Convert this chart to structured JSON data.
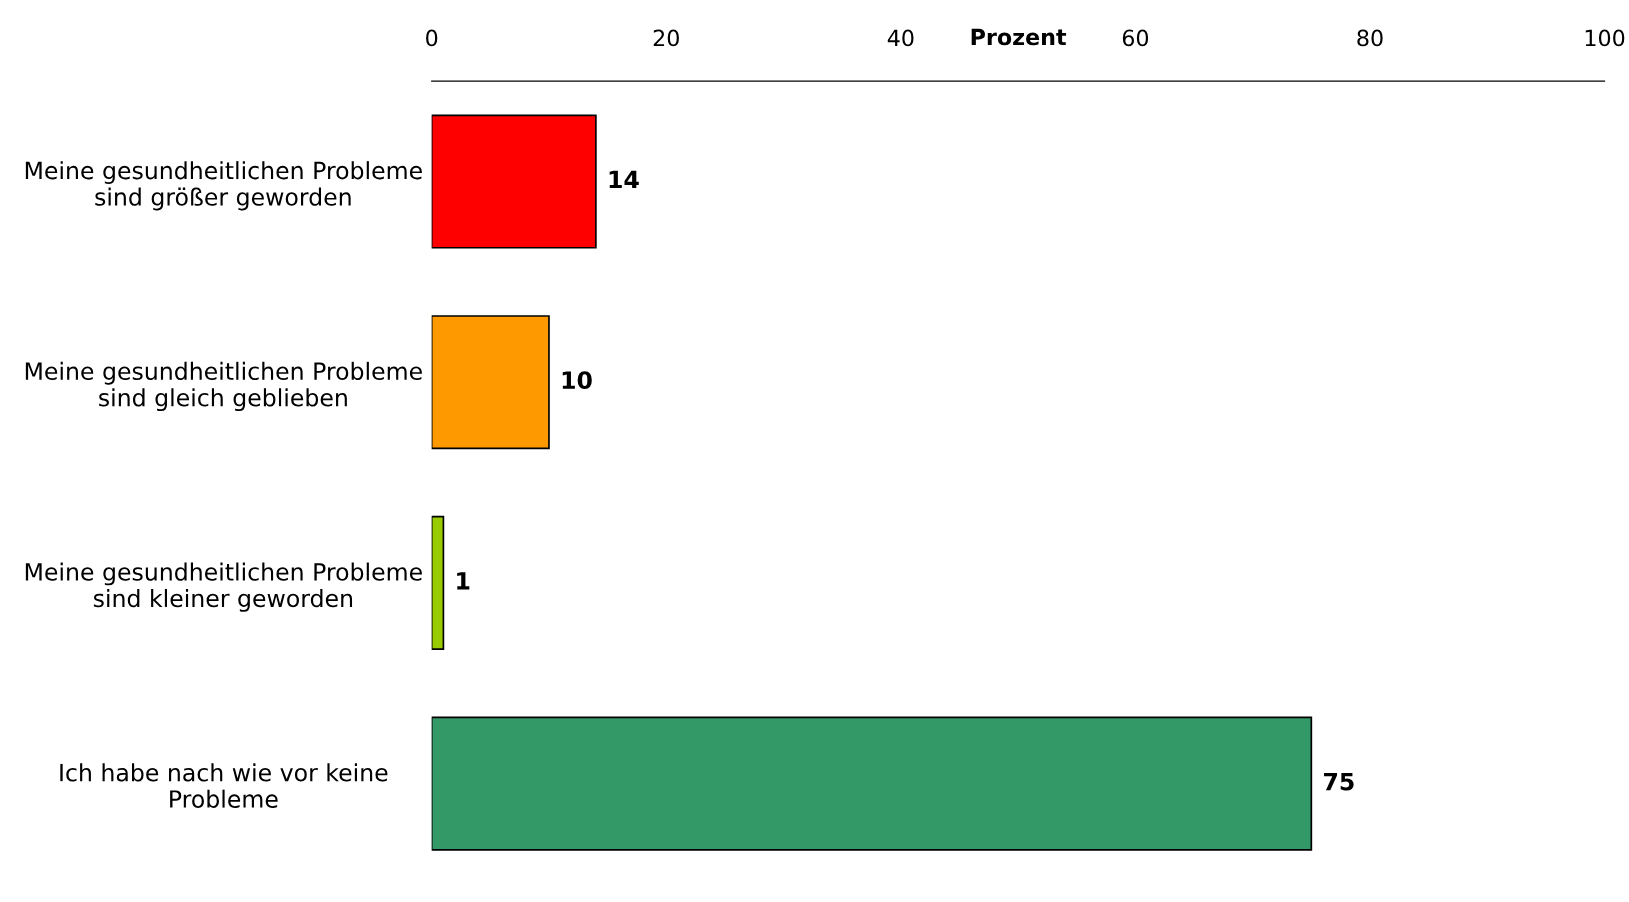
{
  "chart_data": {
    "type": "bar",
    "orientation": "horizontal",
    "xlabel": "Prozent",
    "categories": [
      "Meine gesundheitlichen Probleme\nsind größer geworden",
      "Meine gesundheitlichen Probleme\nsind gleich geblieben",
      "Meine gesundheitlichen Probleme\nsind kleiner geworden",
      "Ich habe nach wie vor keine\nProbleme"
    ],
    "values": [
      14,
      10,
      1,
      75
    ],
    "colors": [
      "#ff0000",
      "#ff9900",
      "#99cc00",
      "#339966"
    ],
    "xlim": [
      0,
      100
    ],
    "xticks": [
      0,
      20,
      40,
      60,
      80,
      100
    ],
    "data_labels": true,
    "grid": false,
    "legend": false
  }
}
